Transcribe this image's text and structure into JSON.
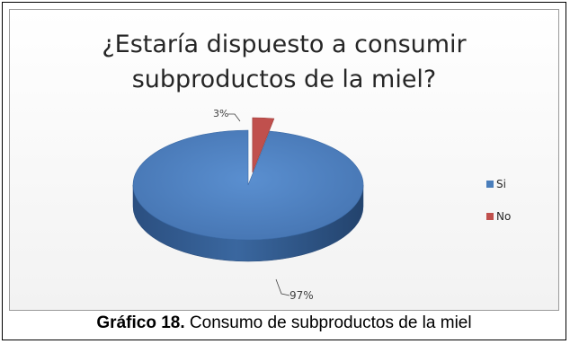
{
  "chart_data": {
    "type": "pie",
    "title_lines": [
      "¿Estaría dispuesto a consumir",
      "subproductos de la miel?"
    ],
    "slices": [
      {
        "name": "Si",
        "value": 97,
        "label": "97%",
        "color": "#4a7ebb"
      },
      {
        "name": "No",
        "value": 3,
        "label": "3%",
        "color": "#c0504d"
      }
    ],
    "legend": {
      "position": "right",
      "entries": [
        "Si",
        "No"
      ]
    },
    "style": "3d"
  },
  "caption": {
    "label": "Gráfico 18.",
    "text": " Consumo de subproductos de la miel"
  }
}
